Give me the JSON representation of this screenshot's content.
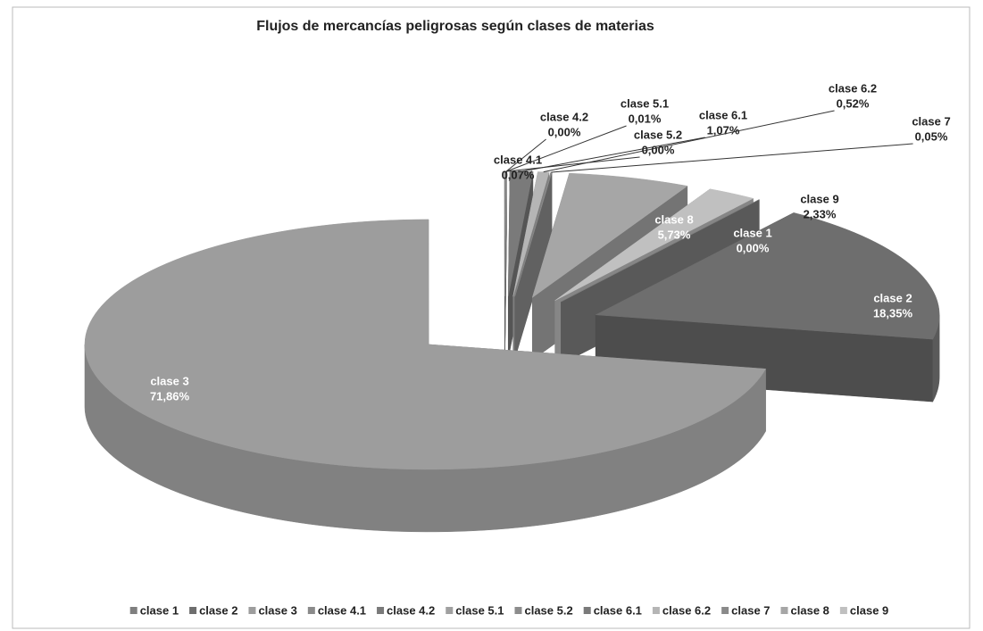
{
  "chart_data": {
    "type": "pie3d",
    "title": "Flujos de mercancías peligrosas según clases de materias",
    "categories": [
      "clase 1",
      "clase 2",
      "clase 3",
      "clase 4.1",
      "clase 4.2",
      "clase 5.1",
      "clase 5.2",
      "clase 6.1",
      "clase 6.2",
      "clase 7",
      "clase 8",
      "clase 9"
    ],
    "values": [
      0,
      18.35,
      71.86,
      0.07,
      0,
      0.01,
      0,
      1.07,
      0.52,
      0.05,
      5.73,
      2.33
    ],
    "value_labels": [
      "0,00%",
      "18,35%",
      "71,86%",
      "0,07%",
      "0,00%",
      "0,01%",
      "0,00%",
      "1,07%",
      "0,52%",
      "0,05%",
      "5,73%",
      "2,33%"
    ],
    "colors": [
      "#7f7f7f",
      "#6e6e6e",
      "#9d9d9d",
      "#8a8a8a",
      "#7a7a7a",
      "#a0a0a0",
      "#8c8c8c",
      "#7a7a7a",
      "#b5b5b5",
      "#8a8a8a",
      "#a6a6a6",
      "#c0c0c0"
    ],
    "legend": "bottom"
  }
}
